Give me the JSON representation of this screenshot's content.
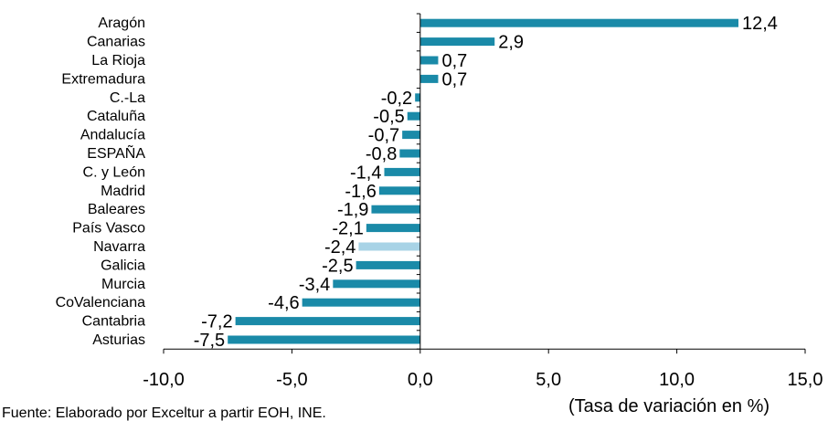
{
  "chart_data": {
    "type": "bar",
    "orientation": "horizontal",
    "categories": [
      "Aragón",
      "Canarias",
      "La Rioja",
      "Extremadura",
      "C.-La",
      "Cataluña",
      "Andalucía",
      "ESPAÑA",
      "C. y León",
      "Madrid",
      "Baleares",
      "País Vasco",
      "Navarra",
      "Galicia",
      "Murcia",
      "CoValenciana",
      "Cantabria",
      "Asturias"
    ],
    "values": [
      12.4,
      2.9,
      0.7,
      0.7,
      -0.2,
      -0.5,
      -0.7,
      -0.8,
      -1.4,
      -1.6,
      -1.9,
      -2.1,
      -2.4,
      -2.5,
      -3.4,
      -4.6,
      -7.2,
      -7.5
    ],
    "value_labels": [
      "12,4",
      "2,9",
      "0,7",
      "0,7",
      "-0,2",
      "-0,5",
      "-0,7",
      "-0,8",
      "-1,4",
      "-1,6",
      "-1,9",
      "-2,1",
      "-2,4",
      "-2,5",
      "-3,4",
      "-4,6",
      "-7,2",
      "-7,5"
    ],
    "xlim": [
      -10,
      15
    ],
    "xticks": [
      -10,
      -5,
      0,
      5,
      10,
      15
    ],
    "xtick_labels": [
      "-10,0",
      "-5,0",
      "0,0",
      "5,0",
      "10,0",
      "15,0"
    ],
    "xlabel": "(Tasa de variación en %)",
    "bar_color": "#1a8aa8",
    "highlight_color": "#a8d3e6",
    "highlight_category": "Navarra",
    "grid": false,
    "legend": "none"
  },
  "source_note": "Fuente: Elaborado por Exceltur a partir EOH, INE."
}
